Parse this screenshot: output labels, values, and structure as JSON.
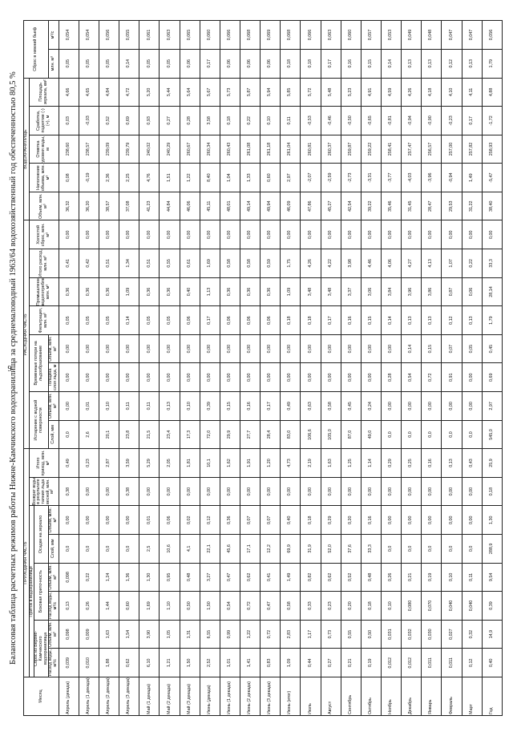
{
  "page_number": "9",
  "title": "Балансовая таблица расчетных режимов работы Нижне-Камчикского водохранилища за среднемаловодный 1963/64 водохозяйственный год обеспеченностью 80,5 %",
  "headers": {
    "month": "Месяц",
    "income_part": "ПРИХОДНАЯ ЧАСТЬ",
    "outcome_part": "РАСХОДНАЯ ЧАСТЬ",
    "reservoir": "ВОДОХРАНИЛИЩЕ",
    "inflow": "Приток в водохранилище",
    "upstream_release": "Сброс из Верхне-Камчикского водохранилища",
    "side_inflow": "Боковая приточность",
    "precipitation": "Осадки на зеркало",
    "return_water": "Возврат воды в результате таяния льда весной, млн. м³",
    "total_inflow": "Итого приход, млн. м³",
    "evaporation": "Испарение с водной поверхности",
    "ice_loss": "Временные потери на льдообразование",
    "filtration": "Фильтрация, млн. м³",
    "industrial": "Промышленное водопотребление, млн. м³",
    "total_outflow": "Итого расход, млн. м³",
    "idle_release": "Холостой сброс, млн. м³",
    "volume": "Объем, млн. м³",
    "dead_volume": "Наполнение объема, млн. м³",
    "level": "Отметка уровня воды, м",
    "level_change": "Сработка, поднятие (-) (+), м",
    "area": "Площадь зеркала, км²",
    "downstream_release": "Сброс в нижний бьеф",
    "rate": "Расход воды, м³/с",
    "vol_mln": "Объем, млн. м³",
    "layer_mm": "Слой, мм",
    "thickness": "Толщина слоя льда, м",
    "mln_m3": "млн. м³",
    "m3s": "м³/с"
  },
  "rows": [
    {
      "m": "Апрель (декада)",
      "v": [
        "0,039",
        "0,098",
        "0,13",
        "0,098",
        "0,0",
        "0,00",
        "0,38",
        "0,49",
        "0,0",
        "0,00",
        "0,00",
        "0,00",
        "0,05",
        "0,36",
        "0,41",
        "0,00",
        "36,32",
        "0,08",
        "238,60",
        "0,03",
        "4,66",
        "0,05",
        "0,054"
      ]
    },
    {
      "m": "Апрель (1 декада)",
      "v": [
        "0,010",
        "0,009",
        "0,26",
        "0,22",
        "0,0",
        "0,00",
        "0,00",
        "0,23",
        "2,6",
        "0,01",
        "0,00",
        "0,00",
        "0,05",
        "0,36",
        "0,42",
        "0,00",
        "36,20",
        "-0,19",
        "238,57",
        "-0,03",
        "4,65",
        "0,05",
        "0,054"
      ]
    },
    {
      "m": "Апрель (2 декада)",
      "v": [
        "1,88",
        "1,63",
        "1,44",
        "1,24",
        "0,0",
        "0,00",
        "0,00",
        "2,87",
        "20,1",
        "0,10",
        "0,00",
        "0,00",
        "0,05",
        "0,36",
        "0,51",
        "0,00",
        "38,57",
        "2,36",
        "239,09",
        "0,52",
        "4,84",
        "0,05",
        "0,056"
      ]
    },
    {
      "m": "Апрель (3 декада)",
      "v": [
        "0,62",
        "1,54",
        "0,60",
        "1,36",
        "0,0",
        "0,00",
        "0,38",
        "3,59",
        "23,8",
        "0,11",
        "0,00",
        "0,00",
        "0,14",
        "1,09",
        "1,34",
        "0,00",
        "37,08",
        "2,25",
        "239,79",
        "0,69",
        "4,72",
        "0,14",
        "0,055"
      ]
    },
    {
      "m": "Май (1 декада)",
      "v": [
        "6,10",
        "3,90",
        "1,69",
        "1,30",
        "2,5",
        "0,01",
        "0,00",
        "5,29",
        "21,5",
        "0,11",
        "0,00",
        "0,00",
        "0,05",
        "0,36",
        "0,51",
        "0,00",
        "41,23",
        "4,76",
        "240,02",
        "0,93",
        "5,20",
        "0,05",
        "0,061"
      ]
    },
    {
      "m": "Май (2 декада)",
      "v": [
        "1,21",
        "1,05",
        "1,10",
        "0,95",
        "10,6",
        "0,06",
        "0,00",
        "2,05",
        "23,4",
        "0,13",
        "0,00",
        "0,00",
        "0,05",
        "0,36",
        "0,55",
        "0,00",
        "44,84",
        "1,51",
        "240,29",
        "0,27",
        "5,44",
        "0,05",
        "0,063"
      ]
    },
    {
      "m": "Май (3 декада)",
      "v": [
        "1,50",
        "1,31",
        "0,50",
        "0,48",
        "4,1",
        "0,02",
        "0,00",
        "1,81",
        "17,3",
        "0,10",
        "0,00",
        "0,00",
        "0,06",
        "0,40",
        "0,61",
        "0,00",
        "46,06",
        "1,22",
        "260,67",
        "0,28",
        "5,64",
        "0,06",
        "0,065"
      ]
    },
    {
      "m": "Июнь (декада)",
      "v": [
        "2,52",
        "6,55",
        "1,50",
        "3,27",
        "22,1",
        "0,12",
        "0,00",
        "10,1",
        "72,0",
        "0,39",
        "0,00",
        "0,00",
        "0,17",
        "1,13",
        "1,69",
        "0,00",
        "45,11",
        "8,40",
        "260,34",
        "3,58",
        "5,67",
        "0,17",
        "0,060"
      ]
    },
    {
      "m": "Июнь (1 декада)",
      "v": [
        "1,01",
        "0,99",
        "0,54",
        "0,47",
        "45,6",
        "0,36",
        "0,00",
        "1,62",
        "29,9",
        "0,15",
        "0,00",
        "0,00",
        "0,06",
        "0,36",
        "0,58",
        "0,00",
        "48,01",
        "1,04",
        "260,43",
        "0,18",
        "5,73",
        "0,06",
        "0,066"
      ]
    },
    {
      "m": "Июнь (2 декада)",
      "v": [
        "1,41",
        "1,22",
        "0,72",
        "0,62",
        "17,1",
        "0,07",
        "0,00",
        "1,91",
        "27,7",
        "0,16",
        "0,00",
        "0,00",
        "0,06",
        "0,36",
        "0,58",
        "0,00",
        "49,14",
        "1,33",
        "261,08",
        "0,22",
        "5,87",
        "0,06",
        "0,068"
      ]
    },
    {
      "m": "Июнь (3 декада)",
      "v": [
        "0,83",
        "0,72",
        "0,47",
        "0,41",
        "12,2",
        "0,07",
        "0,00",
        "1,20",
        "28,4",
        "0,17",
        "0,00",
        "0,00",
        "0,06",
        "0,36",
        "0,59",
        "0,00",
        "49,94",
        "0,60",
        "261,18",
        "0,10",
        "5,94",
        "0,06",
        "0,069"
      ]
    },
    {
      "m": "Июнь (итог)",
      "v": [
        "1,09",
        "2,83",
        "0,58",
        "1,49",
        "69,9",
        "0,40",
        "0,00",
        "4,73",
        "83,0",
        "0,49",
        "0,00",
        "0,00",
        "0,18",
        "1,09",
        "1,75",
        "0,00",
        "46,09",
        "2,97",
        "261,04",
        "0,11",
        "5,85",
        "0,18",
        "0,068"
      ]
    },
    {
      "m": "Июль",
      "v": [
        "0,44",
        "1,17",
        "0,33",
        "0,82",
        "31,9",
        "0,18",
        "0,00",
        "2,19",
        "106,6",
        "0,63",
        "0,00",
        "0,00",
        "0,18",
        "3,48",
        "4,26",
        "0,00",
        "47,86",
        "-2,07",
        "260,81",
        "-0,53",
        "5,72",
        "0,18",
        "0,066"
      ]
    },
    {
      "m": "Август",
      "v": [
        "0,27",
        "0,73",
        "0,23",
        "0,62",
        "52,0",
        "0,29",
        "0,00",
        "1,63",
        "105,0",
        "0,58",
        "0,00",
        "0,00",
        "0,17",
        "3,48",
        "4,22",
        "0,00",
        "45,27",
        "-2,59",
        "260,37",
        "-0,46",
        "5,48",
        "0,17",
        "0,063"
      ]
    },
    {
      "m": "Сентябрь",
      "v": [
        "0,21",
        "0,55",
        "0,20",
        "0,52",
        "37,6",
        "0,20",
        "0,00",
        "1,25",
        "87,0",
        "0,45",
        "0,00",
        "0,00",
        "0,16",
        "3,37",
        "3,98",
        "0,00",
        "42,54",
        "-2,73",
        "259,87",
        "-0,50",
        "5,23",
        "0,16",
        "0,060"
      ]
    },
    {
      "m": "Октябрь",
      "v": [
        "0,19",
        "0,50",
        "0,18",
        "0,48",
        "33,3",
        "0,16",
        "0,00",
        "1,14",
        "49,0",
        "0,24",
        "0,00",
        "0,00",
        "0,15",
        "3,06",
        "4,46",
        "0,00",
        "39,22",
        "-3,31",
        "259,22",
        "-0,65",
        "4,91",
        "0,15",
        "0,057"
      ]
    },
    {
      "m": "Ноябрь",
      "v": [
        "0,012",
        "0,031",
        "0,10",
        "0,26",
        "0,0",
        "0,00",
        "0,00",
        "0,29",
        "0,0",
        "0,00",
        "0,28",
        "0,00",
        "0,14",
        "3,84",
        "4,06",
        "0,00",
        "35,46",
        "-3,77",
        "258,41",
        "-0,81",
        "4,59",
        "0,14",
        "0,053"
      ]
    },
    {
      "m": "Декабрь",
      "v": [
        "0,012",
        "0,032",
        "0,080",
        "0,21",
        "0,0",
        "0,00",
        "0,00",
        "0,25",
        "0,0",
        "0,00",
        "0,54",
        "0,14",
        "0,13",
        "3,96",
        "4,27",
        "0,00",
        "31,45",
        "-4,03",
        "257,47",
        "-0,94",
        "4,26",
        "0,13",
        "0,049"
      ]
    },
    {
      "m": "Январь",
      "v": [
        "0,011",
        "0,030",
        "0,070",
        "0,19",
        "0,0",
        "0,00",
        "0,00",
        "0,16",
        "0,0",
        "0,00",
        "0,72",
        "0,15",
        "0,13",
        "3,86",
        "4,13",
        "0,00",
        "28,47",
        "-3,96",
        "256,57",
        "-0,90",
        "4,18",
        "0,13",
        "0,048"
      ]
    },
    {
      "m": "Февраль",
      "v": [
        "0,011",
        "0,027",
        "0,040",
        "0,10",
        "0,0",
        "0,00",
        "0,00",
        "0,13",
        "0,0",
        "0,00",
        "0,91",
        "0,07",
        "0,12",
        "0,87",
        "1,07",
        "0,00",
        "29,53",
        "-0,94",
        "257,00",
        "-0,23",
        "4,10",
        "0,12",
        "0,047"
      ]
    },
    {
      "m": "Март",
      "v": [
        "0,12",
        "0,32",
        "0,040",
        "0,11",
        "0,0",
        "0,00",
        "0,00",
        "0,43",
        "0,0",
        "0,00",
        "0,00",
        "0,05",
        "0,13",
        "0,06",
        "0,22",
        "0,00",
        "31,22",
        "1,49",
        "257,82",
        "0,17",
        "4,11",
        "0,13",
        "0,047"
      ]
    },
    {
      "m": "Год",
      "v": [
        "0,40",
        "14,9",
        "0,39",
        "9,54",
        "288,9",
        "1,30",
        "0,18",
        "25,9",
        "545,0",
        "2,97",
        "0,69",
        "0,45",
        "1,79",
        "28,14",
        "33,3",
        "0,00",
        "38,40",
        "-5,47",
        "258,93",
        "-1,72",
        "4,88",
        "1,79",
        "0,056"
      ]
    }
  ]
}
